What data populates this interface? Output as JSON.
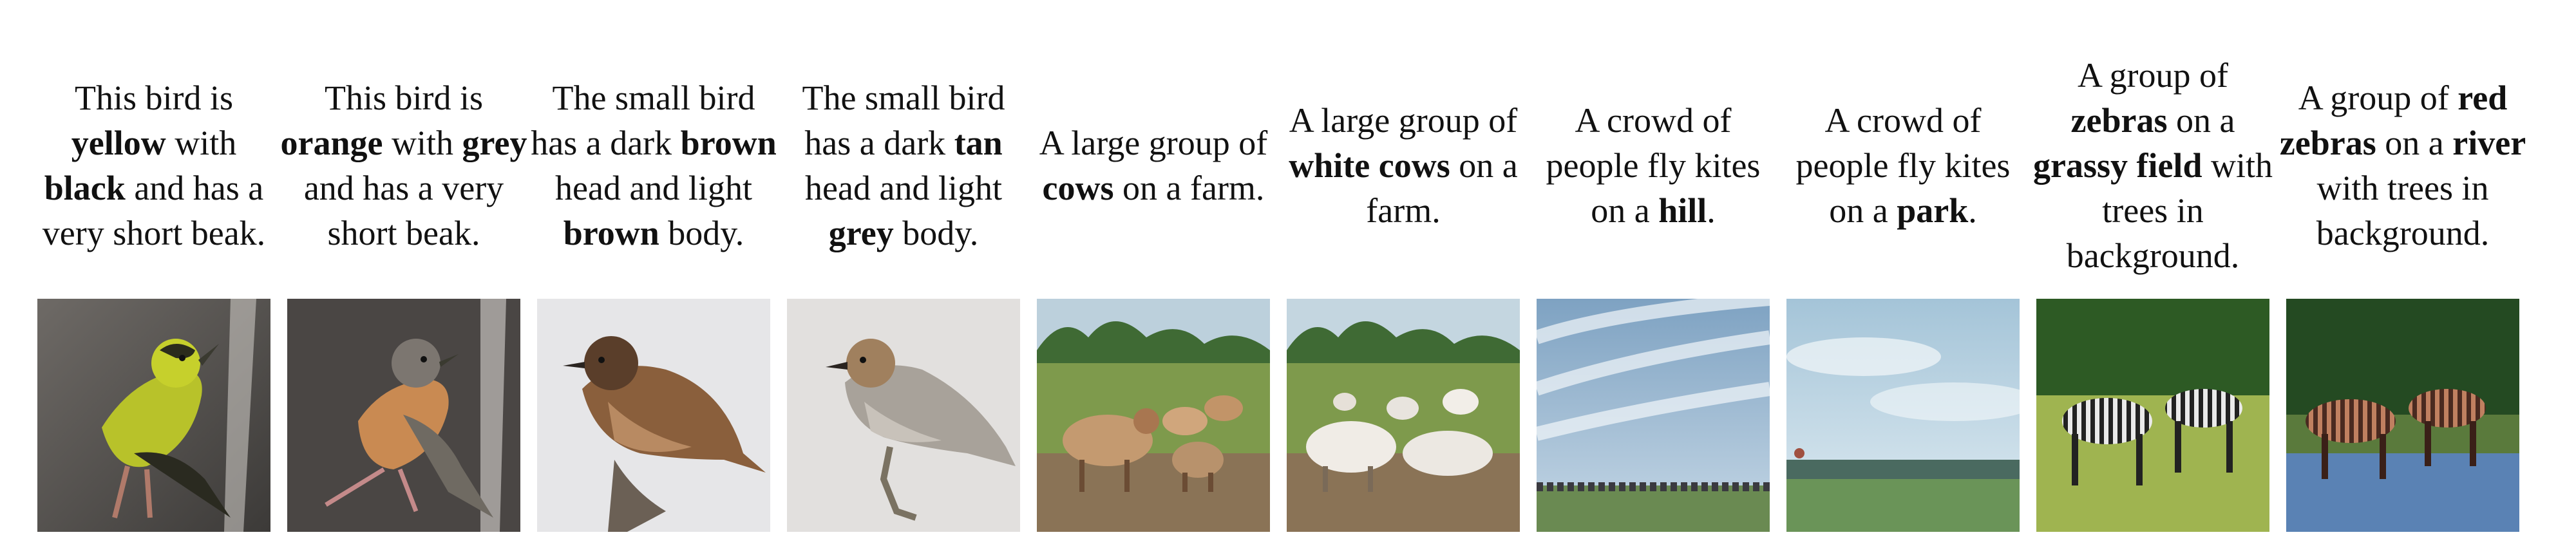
{
  "figure": {
    "columns": [
      {
        "caption": [
          {
            "t": "This bird is "
          },
          {
            "t": "yellow",
            "b": true
          },
          {
            "t": " with "
          },
          {
            "t": "black",
            "b": true
          },
          {
            "t": " and has a very short beak."
          }
        ],
        "image": "generated-yellow-black-bird"
      },
      {
        "caption": [
          {
            "t": "This bird is "
          },
          {
            "t": "orange",
            "b": true
          },
          {
            "t": " with "
          },
          {
            "t": "grey",
            "b": true
          },
          {
            "t": " and has a very short beak."
          }
        ],
        "image": "generated-orange-grey-bird"
      },
      {
        "caption": [
          {
            "t": "The small bird has a dark "
          },
          {
            "t": "brown",
            "b": true
          },
          {
            "t": " head and light "
          },
          {
            "t": "brown",
            "b": true
          },
          {
            "t": " body."
          }
        ],
        "image": "generated-brown-bird"
      },
      {
        "caption": [
          {
            "t": "The small bird has a dark "
          },
          {
            "t": "tan",
            "b": true
          },
          {
            "t": " head and light "
          },
          {
            "t": "grey",
            "b": true
          },
          {
            "t": " body."
          }
        ],
        "image": "generated-tan-grey-bird"
      },
      {
        "caption": [
          {
            "t": "A large group of "
          },
          {
            "t": "cows",
            "b": true
          },
          {
            "t": " on a farm."
          }
        ],
        "image": "generated-cows-farm"
      },
      {
        "caption": [
          {
            "t": "A large group of "
          },
          {
            "t": "white cows",
            "b": true
          },
          {
            "t": " on a farm."
          }
        ],
        "image": "generated-white-cows-farm"
      },
      {
        "caption": [
          {
            "t": "A crowd of people fly kites on a "
          },
          {
            "t": "hill",
            "b": true
          },
          {
            "t": "."
          }
        ],
        "image": "generated-kites-hill"
      },
      {
        "caption": [
          {
            "t": "A crowd of people fly kites on a "
          },
          {
            "t": "park",
            "b": true
          },
          {
            "t": "."
          }
        ],
        "image": "generated-kites-park"
      },
      {
        "caption": [
          {
            "t": "A group of "
          },
          {
            "t": "zebras",
            "b": true
          },
          {
            "t": " on a "
          },
          {
            "t": "grassy field",
            "b": true
          },
          {
            "t": " with trees in background."
          }
        ],
        "image": "generated-zebras-grass"
      },
      {
        "caption": [
          {
            "t": "A group of "
          },
          {
            "t": "red",
            "b": true
          },
          {
            "t": " "
          },
          {
            "t": "zebras",
            "b": true
          },
          {
            "t": " on a "
          },
          {
            "t": "river",
            "b": true
          },
          {
            "t": " with trees in background."
          }
        ],
        "image": "generated-red-zebras-river"
      }
    ]
  }
}
